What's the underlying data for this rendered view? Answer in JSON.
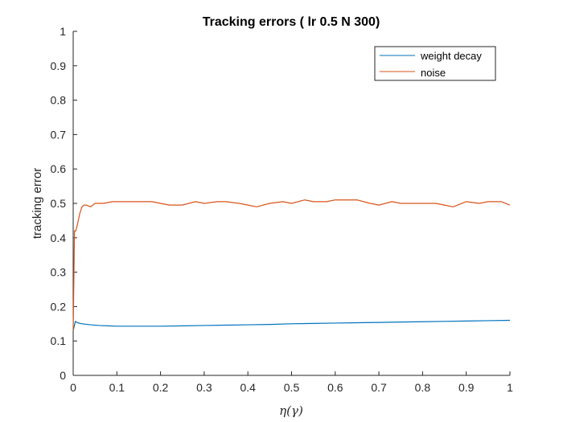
{
  "chart_data": {
    "type": "line",
    "title": "Tracking errors ( lr 0.5 N 300)",
    "xlabel": "η(γ)",
    "ylabel": "tracking error",
    "xlim": [
      0,
      1
    ],
    "ylim": [
      0,
      1
    ],
    "xticks": [
      "0",
      "0.1",
      "0.2",
      "0.3",
      "0.4",
      "0.5",
      "0.6",
      "0.7",
      "0.8",
      "0.9",
      "1"
    ],
    "yticks": [
      "0",
      "0.1",
      "0.2",
      "0.3",
      "0.4",
      "0.5",
      "0.6",
      "0.7",
      "0.8",
      "0.9",
      "1"
    ],
    "grid": false,
    "legend_position": "top-right",
    "series": [
      {
        "name": "weight decay",
        "color": "#0072BD",
        "x": [
          0,
          0.005,
          0.01,
          0.02,
          0.04,
          0.06,
          0.08,
          0.1,
          0.15,
          0.2,
          0.25,
          0.3,
          0.35,
          0.4,
          0.45,
          0.5,
          0.55,
          0.6,
          0.65,
          0.7,
          0.75,
          0.8,
          0.85,
          0.9,
          0.95,
          1.0
        ],
        "y": [
          0.13,
          0.157,
          0.153,
          0.15,
          0.147,
          0.145,
          0.144,
          0.143,
          0.143,
          0.143,
          0.144,
          0.145,
          0.146,
          0.147,
          0.148,
          0.15,
          0.151,
          0.152,
          0.153,
          0.154,
          0.155,
          0.156,
          0.157,
          0.158,
          0.159,
          0.16
        ]
      },
      {
        "name": "noise",
        "color": "#D95319",
        "x": [
          0,
          0.003,
          0.006,
          0.01,
          0.015,
          0.02,
          0.025,
          0.03,
          0.04,
          0.05,
          0.07,
          0.09,
          0.1,
          0.12,
          0.15,
          0.18,
          0.2,
          0.22,
          0.25,
          0.28,
          0.3,
          0.33,
          0.35,
          0.38,
          0.4,
          0.42,
          0.45,
          0.48,
          0.5,
          0.53,
          0.55,
          0.58,
          0.6,
          0.63,
          0.65,
          0.68,
          0.7,
          0.73,
          0.75,
          0.78,
          0.8,
          0.83,
          0.85,
          0.87,
          0.9,
          0.93,
          0.95,
          0.98,
          1.0
        ],
        "y": [
          0.13,
          0.42,
          0.42,
          0.44,
          0.47,
          0.49,
          0.495,
          0.495,
          0.49,
          0.5,
          0.5,
          0.505,
          0.505,
          0.505,
          0.505,
          0.505,
          0.5,
          0.495,
          0.495,
          0.505,
          0.5,
          0.505,
          0.505,
          0.5,
          0.495,
          0.49,
          0.5,
          0.505,
          0.5,
          0.51,
          0.505,
          0.505,
          0.51,
          0.51,
          0.51,
          0.5,
          0.495,
          0.505,
          0.5,
          0.5,
          0.5,
          0.5,
          0.495,
          0.49,
          0.505,
          0.5,
          0.505,
          0.505,
          0.495
        ]
      }
    ]
  }
}
